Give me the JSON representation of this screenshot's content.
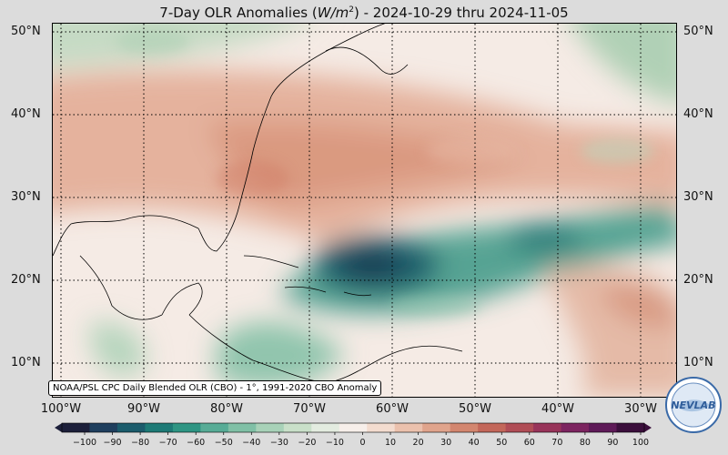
{
  "title": {
    "prefix": "7-Day OLR Anomalies (",
    "units": "W/m",
    "units_sup": "2",
    "suffix": ") - 2024-10-29 thru 2024-11-05"
  },
  "map": {
    "lat_labels": [
      "50°N",
      "40°N",
      "30°N",
      "20°N",
      "10°N"
    ],
    "lat_values": [
      50,
      40,
      30,
      20,
      10
    ],
    "lon_labels": [
      "100°W",
      "90°W",
      "80°W",
      "70°W",
      "60°W",
      "50°W",
      "40°W",
      "30°W"
    ],
    "lon_values": [
      -100,
      -90,
      -80,
      -70,
      -60,
      -50,
      -40,
      -30
    ],
    "extent": {
      "lon_min": -101,
      "lon_max": -25.5,
      "lat_min": 6.5,
      "lat_max": 51.5
    },
    "source_note": "NOAA/PSL CPC Daily Blended OLR (CBO) - 1°, 1991-2020 CBO Anomaly"
  },
  "colorbar": {
    "ticks": [
      "−100",
      "−90",
      "−80",
      "−70",
      "−60",
      "−50",
      "−40",
      "−30",
      "−20",
      "−10",
      "0",
      "10",
      "20",
      "30",
      "40",
      "50",
      "60",
      "70",
      "80",
      "90",
      "100"
    ],
    "min": -100,
    "max": 100,
    "colors": [
      "#1c1f3a",
      "#1f3f5e",
      "#1b5c6c",
      "#1d7a76",
      "#2e9583",
      "#57ac96",
      "#80c0a6",
      "#a8d2b8",
      "#c9e0c9",
      "#e3ece0",
      "#f7efea",
      "#f3dccf",
      "#ebc1ad",
      "#e0a48c",
      "#d3866f",
      "#c3675a",
      "#b04d56",
      "#98345a",
      "#7c2460",
      "#5e1a58",
      "#3b0f3c"
    ]
  },
  "logo": {
    "text": "NEVLAB"
  }
}
